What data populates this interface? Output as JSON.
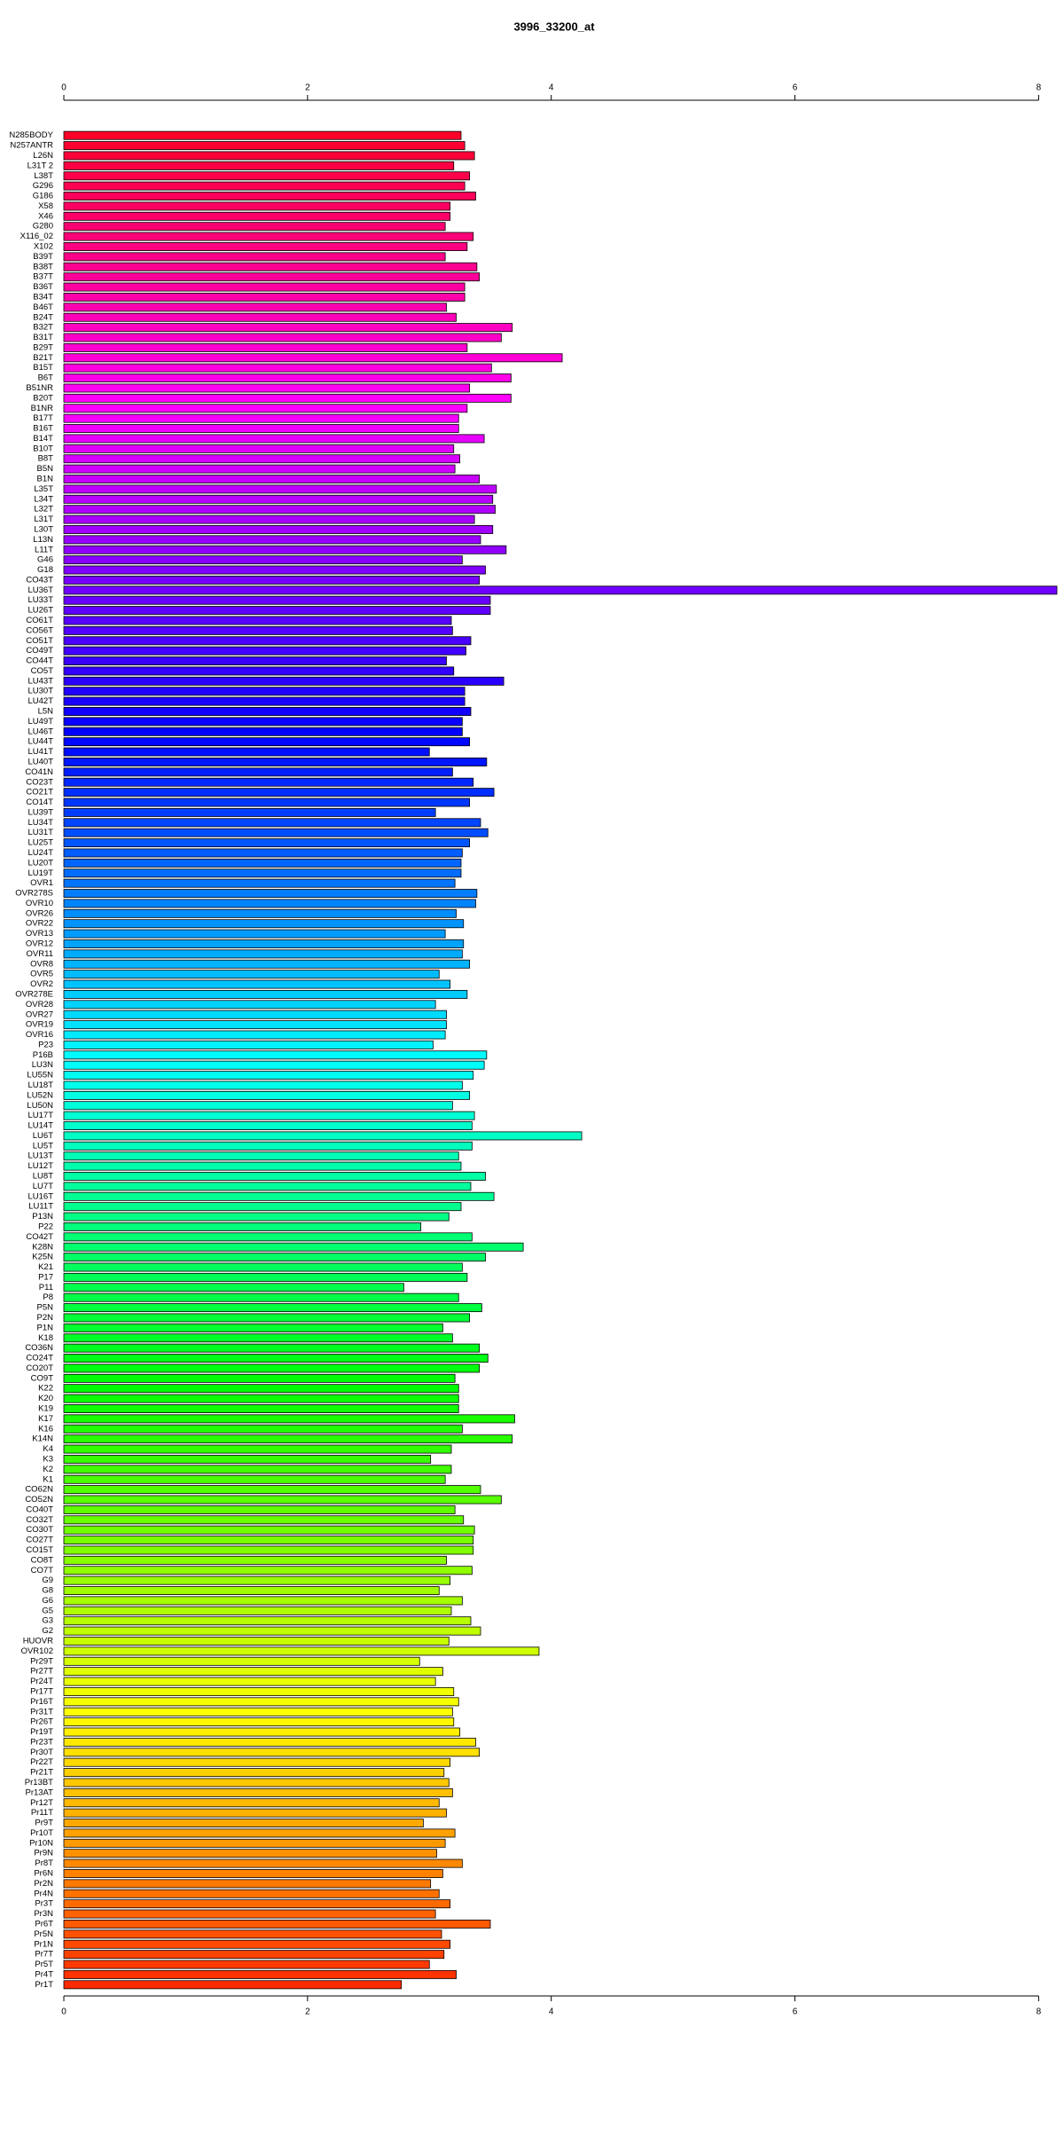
{
  "chart_data": {
    "type": "barh",
    "title": "3996_33200_at",
    "categories": [
      "N285BODY",
      "N257ANTR",
      "L26N",
      "L31T 2",
      "L38T",
      "G296",
      "G186",
      "X58",
      "X46",
      "G280",
      "X116_02",
      "X102",
      "B39T",
      "B38T",
      "B37T",
      "B36T",
      "B34T",
      "B46T",
      "B24T",
      "B32T",
      "B31T",
      "B29T",
      "B21T",
      "B15T",
      "B6T",
      "B51NR",
      "B20T",
      "B1NR",
      "B17T",
      "B16T",
      "B14T",
      "B10T",
      "B8T",
      "B5N",
      "B1N",
      "L35T",
      "L34T",
      "L32T",
      "L31T",
      "L30T",
      "L13N",
      "L11T",
      "G46",
      "G18",
      "CO43T",
      "LU36T",
      "LU33T",
      "LU26T",
      "CO61T",
      "CO56T",
      "CO51T",
      "CO49T",
      "CO44T",
      "CO5T",
      "LU43T",
      "LU30T",
      "LU42T",
      "L5N",
      "LU49T",
      "LU46T",
      "LU44T",
      "LU41T",
      "LU40T",
      "CO41N",
      "CO23T",
      "CO21T",
      "CO14T",
      "LU39T",
      "LU34T",
      "LU31T",
      "LU25T",
      "LU24T",
      "LU20T",
      "LU19T",
      "OVR1",
      "OVR278S",
      "OVR10",
      "OVR26",
      "OVR22",
      "OVR13",
      "OVR12",
      "OVR11",
      "OVR8",
      "OVR5",
      "OVR2",
      "OVR278E",
      "OVR28",
      "OVR27",
      "OVR19",
      "OVR16",
      "P23",
      "P16B",
      "LU3N",
      "LU55N",
      "LU18T",
      "LU52N",
      "LU50N",
      "LU17T",
      "LU14T",
      "LU6T",
      "LU5T",
      "LU13T",
      "LU12T",
      "LU8T",
      "LU7T",
      "LU16T",
      "LU11T",
      "P13N",
      "P22",
      "CO42T",
      "K28N",
      "K25N",
      "K21",
      "P17",
      "P11",
      "P8",
      "P5N",
      "P2N",
      "P1N",
      "K18",
      "CO36N",
      "CO24T",
      "CO20T",
      "CO9T",
      "K22",
      "K20",
      "K19",
      "K17",
      "K16",
      "K14N",
      "K4",
      "K3",
      "K2",
      "K1",
      "CO62N",
      "CO52N",
      "CO40T",
      "CO32T",
      "CO30T",
      "CO27T",
      "CO15T",
      "CO8T",
      "CO7T",
      "G9",
      "G8",
      "G6",
      "G5",
      "G3",
      "G2",
      "HUOVR",
      "OVR102",
      "Pr29T",
      "Pr27T",
      "Pr24T",
      "Pr17T",
      "Pr16T",
      "Pr31T",
      "Pr26T",
      "Pr19T",
      "Pr23T",
      "Pr30T",
      "Pr22T",
      "Pr21T",
      "Pr13BT",
      "Pr13AT",
      "Pr12T",
      "Pr11T",
      "Pr9T",
      "Pr10T",
      "Pr10N",
      "Pr9N",
      "Pr8T",
      "Pr6N",
      "Pr2N",
      "Pr4N",
      "Pr3T",
      "Pr3N",
      "Pr6T",
      "Pr5N",
      "Pr1N",
      "Pr7T",
      "Pr5T",
      "Pr4T",
      "Pr1T"
    ],
    "values": [
      3.26,
      3.29,
      3.37,
      3.2,
      3.33,
      3.29,
      3.38,
      3.17,
      3.17,
      3.13,
      3.36,
      3.31,
      3.13,
      3.39,
      3.41,
      3.29,
      3.29,
      3.14,
      3.22,
      3.68,
      3.59,
      3.31,
      4.09,
      3.51,
      3.67,
      3.33,
      3.67,
      3.31,
      3.24,
      3.24,
      3.45,
      3.2,
      3.25,
      3.21,
      3.41,
      3.55,
      3.52,
      3.54,
      3.37,
      3.52,
      3.42,
      3.63,
      3.27,
      3.46,
      3.41,
      8.15,
      3.5,
      3.5,
      3.18,
      3.19,
      3.34,
      3.3,
      3.14,
      3.2,
      3.61,
      3.29,
      3.29,
      3.34,
      3.27,
      3.27,
      3.33,
      3.0,
      3.47,
      3.19,
      3.36,
      3.53,
      3.33,
      3.05,
      3.42,
      3.48,
      3.33,
      3.27,
      3.26,
      3.26,
      3.21,
      3.39,
      3.38,
      3.22,
      3.28,
      3.13,
      3.28,
      3.27,
      3.33,
      3.08,
      3.17,
      3.31,
      3.05,
      3.14,
      3.14,
      3.13,
      3.03,
      3.47,
      3.45,
      3.36,
      3.27,
      3.33,
      3.19,
      3.37,
      3.35,
      4.25,
      3.35,
      3.24,
      3.26,
      3.46,
      3.34,
      3.53,
      3.26,
      3.16,
      2.93,
      3.35,
      3.77,
      3.46,
      3.27,
      3.31,
      2.79,
      3.24,
      3.43,
      3.33,
      3.11,
      3.19,
      3.41,
      3.48,
      3.41,
      3.21,
      3.24,
      3.24,
      3.24,
      3.7,
      3.27,
      3.68,
      3.18,
      3.01,
      3.18,
      3.13,
      3.42,
      3.59,
      3.21,
      3.28,
      3.37,
      3.36,
      3.36,
      3.14,
      3.35,
      3.17,
      3.08,
      3.27,
      3.18,
      3.34,
      3.42,
      3.16,
      3.9,
      2.92,
      3.11,
      3.05,
      3.2,
      3.24,
      3.19,
      3.2,
      3.25,
      3.38,
      3.41,
      3.17,
      3.12,
      3.16,
      3.19,
      3.08,
      3.14,
      2.95,
      3.21,
      3.13,
      3.06,
      3.27,
      3.11,
      3.01,
      3.08,
      3.17,
      3.05,
      3.5,
      3.1,
      3.17,
      3.12,
      3.0,
      3.22,
      2.77
    ],
    "color_scheme": "rainbow",
    "xlim": [
      0,
      8.15
    ],
    "xticks": [
      0,
      2,
      4,
      6,
      8
    ]
  }
}
